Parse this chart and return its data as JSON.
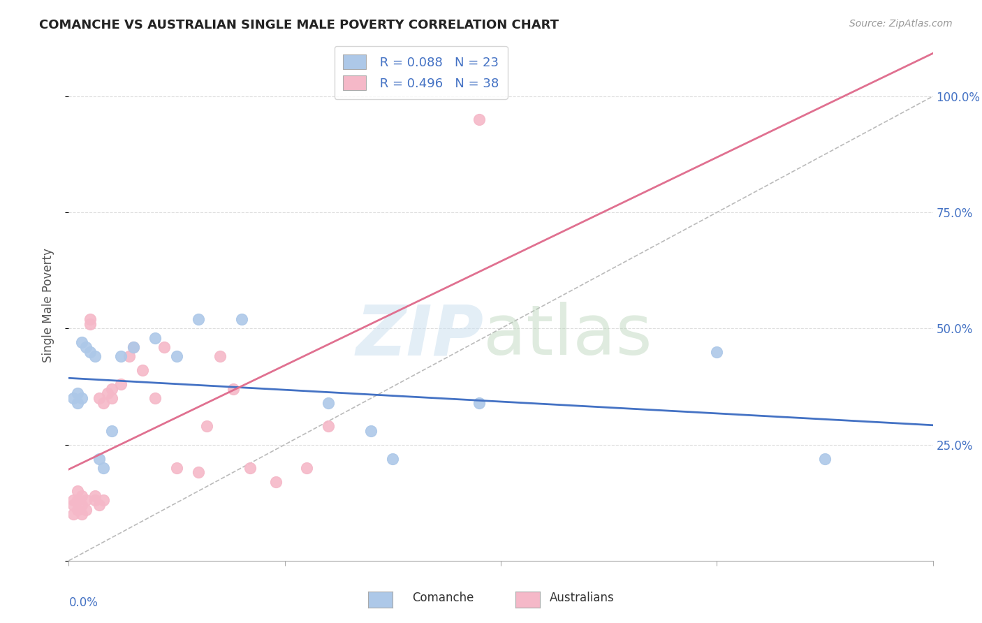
{
  "title": "COMANCHE VS AUSTRALIAN SINGLE MALE POVERTY CORRELATION CHART",
  "source": "Source: ZipAtlas.com",
  "ylabel": "Single Male Poverty",
  "ytick_labels": [
    "100.0%",
    "75.0%",
    "50.0%",
    "25.0%",
    "0.0%"
  ],
  "ytick_values_right": [
    "100.0%",
    "75.0%",
    "50.0%",
    "25.0%"
  ],
  "xlim": [
    0.0,
    0.2
  ],
  "ylim": [
    0.0,
    1.1
  ],
  "comanche_R": "0.088",
  "comanche_N": "23",
  "australians_R": "0.496",
  "australians_N": "38",
  "comanche_color": "#adc8e8",
  "australians_color": "#f5b8c8",
  "comanche_line_color": "#4472c4",
  "australians_line_color": "#e07090",
  "legend_text_color": "#4472c4",
  "comanche_x": [
    0.001,
    0.002,
    0.002,
    0.003,
    0.003,
    0.004,
    0.005,
    0.006,
    0.007,
    0.008,
    0.01,
    0.012,
    0.015,
    0.02,
    0.025,
    0.03,
    0.04,
    0.06,
    0.07,
    0.075,
    0.095,
    0.15,
    0.175
  ],
  "comanche_y": [
    0.35,
    0.34,
    0.36,
    0.47,
    0.35,
    0.46,
    0.45,
    0.44,
    0.22,
    0.2,
    0.28,
    0.44,
    0.46,
    0.48,
    0.44,
    0.52,
    0.52,
    0.34,
    0.28,
    0.22,
    0.34,
    0.45,
    0.22
  ],
  "australians_x": [
    0.001,
    0.001,
    0.001,
    0.002,
    0.002,
    0.002,
    0.003,
    0.003,
    0.003,
    0.004,
    0.004,
    0.005,
    0.005,
    0.006,
    0.006,
    0.007,
    0.007,
    0.008,
    0.008,
    0.009,
    0.01,
    0.01,
    0.012,
    0.014,
    0.015,
    0.017,
    0.02,
    0.022,
    0.025,
    0.03,
    0.032,
    0.035,
    0.038,
    0.042,
    0.048,
    0.055,
    0.06,
    0.095
  ],
  "australians_y": [
    0.13,
    0.12,
    0.1,
    0.15,
    0.13,
    0.11,
    0.14,
    0.12,
    0.1,
    0.13,
    0.11,
    0.52,
    0.51,
    0.14,
    0.13,
    0.35,
    0.12,
    0.34,
    0.13,
    0.36,
    0.35,
    0.37,
    0.38,
    0.44,
    0.46,
    0.41,
    0.35,
    0.46,
    0.2,
    0.19,
    0.29,
    0.44,
    0.37,
    0.2,
    0.17,
    0.2,
    0.29,
    0.95
  ]
}
